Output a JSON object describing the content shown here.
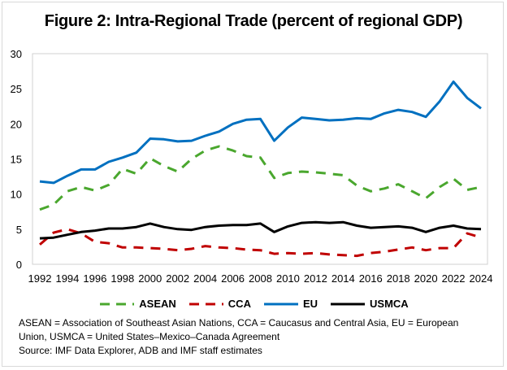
{
  "chart_data": {
    "type": "line",
    "title": "Figure 2: Intra-Regional Trade (percent of regional GDP)",
    "xlabel": "",
    "ylabel": "",
    "ylim": [
      0,
      30
    ],
    "yticks": [
      0,
      5,
      10,
      15,
      20,
      25,
      30
    ],
    "xticks": [
      1992,
      1994,
      1996,
      1998,
      2000,
      2002,
      2004,
      2006,
      2008,
      2010,
      2012,
      2014,
      2016,
      2018,
      2020,
      2022,
      2024
    ],
    "x": [
      1992,
      1993,
      1994,
      1995,
      1996,
      1997,
      1998,
      1999,
      2000,
      2001,
      2002,
      2003,
      2004,
      2005,
      2006,
      2007,
      2008,
      2009,
      2010,
      2011,
      2012,
      2013,
      2014,
      2015,
      2016,
      2017,
      2018,
      2019,
      2020,
      2021,
      2022,
      2023,
      2024
    ],
    "grid": false,
    "legend_position": "bottom",
    "series": [
      {
        "name": "ASEAN",
        "color": "#4aa72e",
        "style": "dashed",
        "values": [
          7.8,
          8.5,
          10.4,
          11.0,
          10.5,
          11.3,
          13.6,
          12.9,
          15.1,
          14.0,
          13.2,
          15.0,
          16.2,
          16.8,
          16.2,
          15.4,
          15.2,
          12.3,
          13.0,
          13.2,
          13.1,
          12.9,
          12.7,
          11.2,
          10.4,
          10.8,
          11.4,
          10.4,
          9.4,
          11.0,
          12.2,
          10.6,
          11.0
        ]
      },
      {
        "name": "CCA",
        "color": "#c00000",
        "style": "dashed",
        "values": [
          2.8,
          4.5,
          5.0,
          4.4,
          3.2,
          3.0,
          2.4,
          2.4,
          2.3,
          2.2,
          2.0,
          2.2,
          2.6,
          2.4,
          2.3,
          2.1,
          2.0,
          1.5,
          1.6,
          1.5,
          1.6,
          1.4,
          1.3,
          1.2,
          1.6,
          1.8,
          2.1,
          2.4,
          2.0,
          2.3,
          2.3,
          4.4,
          3.8
        ]
      },
      {
        "name": "EU",
        "color": "#0070c0",
        "style": "solid",
        "values": [
          11.8,
          11.6,
          12.6,
          13.5,
          13.5,
          14.6,
          15.2,
          15.9,
          17.9,
          17.8,
          17.5,
          17.6,
          18.3,
          18.9,
          20.0,
          20.6,
          20.7,
          17.6,
          19.5,
          20.9,
          20.7,
          20.5,
          20.6,
          20.8,
          20.7,
          21.5,
          22.0,
          21.7,
          21.0,
          23.2,
          26.0,
          23.7,
          22.2
        ]
      },
      {
        "name": "USMCA",
        "color": "#000000",
        "style": "solid",
        "values": [
          3.7,
          3.8,
          4.2,
          4.6,
          4.8,
          5.1,
          5.1,
          5.3,
          5.8,
          5.3,
          5.0,
          4.9,
          5.3,
          5.5,
          5.6,
          5.6,
          5.8,
          4.6,
          5.4,
          5.9,
          6.0,
          5.9,
          6.0,
          5.5,
          5.2,
          5.3,
          5.4,
          5.2,
          4.6,
          5.2,
          5.5,
          5.1,
          5.0
        ]
      }
    ]
  },
  "footnote": {
    "line1": "ASEAN = Association of Southeast Asian Nations, CCA = Caucasus and Central Asia, EU = European",
    "line2": "Union, USMCA = United States–Mexico–Canada Agreement",
    "line3": "Source: IMF Data Explorer, ADB and IMF staff estimates"
  }
}
